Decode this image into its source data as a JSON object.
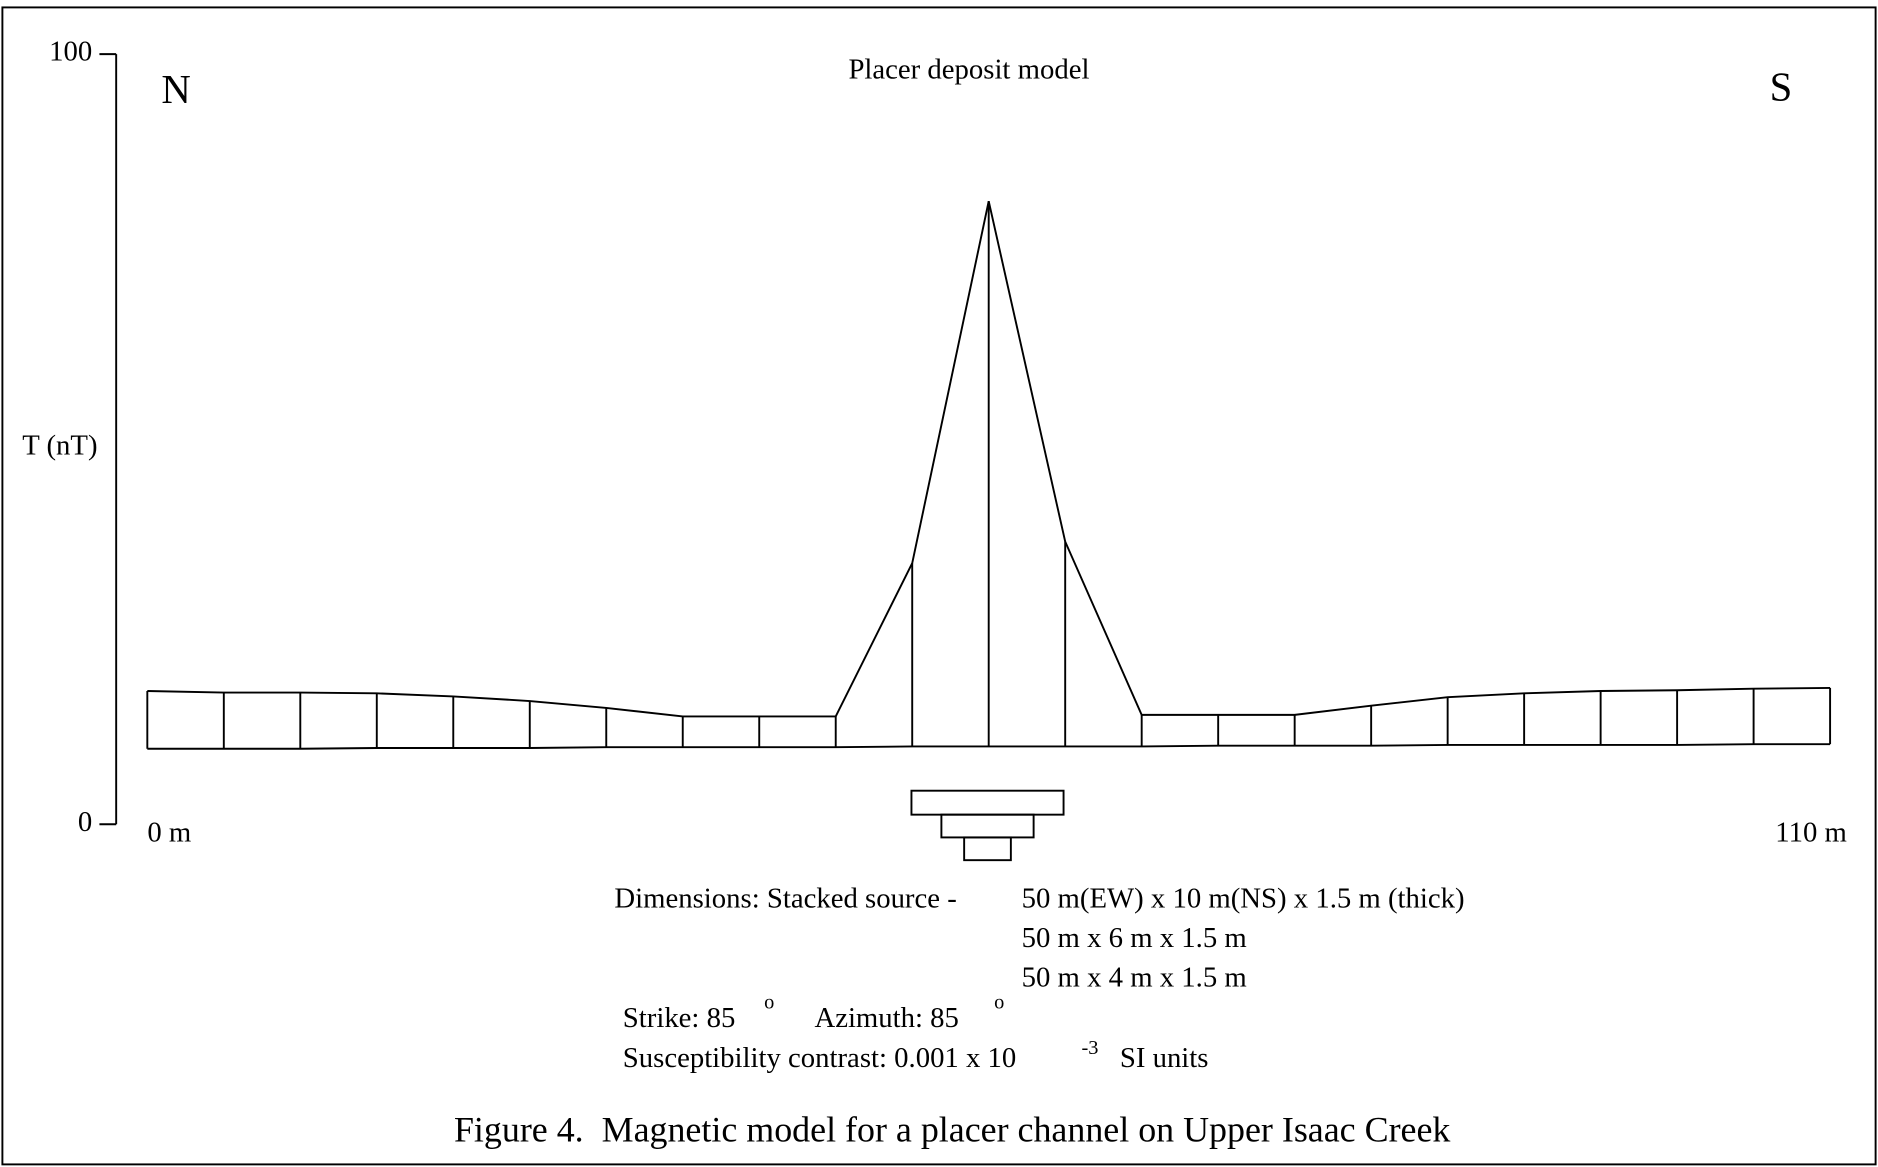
{
  "chart_data": {
    "type": "line",
    "title": "Placer deposit model",
    "left_label": "N",
    "right_label": "S",
    "ylabel": "T (nT)",
    "x": [
      0,
      5,
      10,
      15,
      20,
      25,
      30,
      35,
      40,
      45,
      50,
      55,
      60,
      65,
      70,
      75,
      80,
      85,
      90,
      95,
      100,
      105,
      110
    ],
    "values": [
      17.3,
      17.1,
      17.1,
      17.0,
      16.6,
      16.0,
      15.1,
      14.0,
      14.0,
      14.0,
      33.9,
      80.9,
      36.7,
      14.2,
      14.2,
      14.2,
      15.4,
      16.5,
      17.0,
      17.3,
      17.4,
      17.6,
      17.7
    ],
    "baseline": [
      9.8,
      9.8,
      9.8,
      9.9,
      9.9,
      9.9,
      10.0,
      10.0,
      10.0,
      10.0,
      10.1,
      10.1,
      10.1,
      10.1,
      10.2,
      10.2,
      10.2,
      10.3,
      10.3,
      10.3,
      10.3,
      10.4,
      10.4
    ],
    "color": "#000000",
    "xlim": [
      0,
      110
    ],
    "xticks": [
      {
        "value": 0,
        "label": "0 m"
      },
      {
        "value": 110,
        "label": "110 m"
      }
    ],
    "ylim": [
      0,
      100
    ],
    "yticks": [
      0,
      100
    ],
    "dimensions_label": "Dimensions: Stacked source -",
    "dimensions": [
      "50 m(EW) x 10 m(NS) x 1.5 m (thick)",
      "50 m x 6 m x 1.5 m",
      "50 m x 4 m x 1.5 m"
    ],
    "strike": "Strike: 85",
    "strike_unit": "o",
    "azimuth": "Azimuth: 85",
    "azimuth_unit": "o",
    "susceptibility": "Susceptibility contrast: 0.001 x 10",
    "susceptibility_exponent": "-3",
    "susceptibility_unit": "SI units",
    "caption": "Figure 4.  Magnetic model for a placer channel on Upper Isaac Creek"
  }
}
